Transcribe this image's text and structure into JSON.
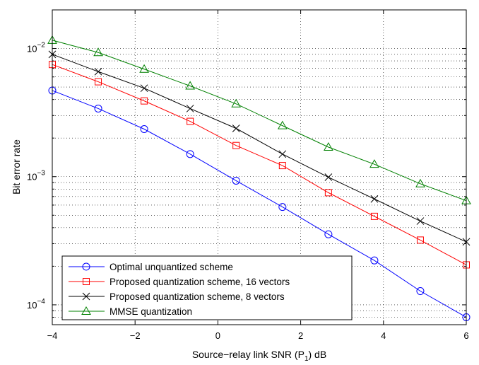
{
  "chart_data": {
    "type": "line",
    "xscale": "linear",
    "yscale": "log",
    "xlim": [
      -4,
      6
    ],
    "ylim": [
      7e-05,
      0.02
    ],
    "xlabel": "Source−relay link SNR (P",
    "xlabel_sub": "1",
    "xlabel_suffix": ") dB",
    "ylabel": "Bit error rate",
    "grid": true,
    "legend_position": "lower-left",
    "x_ticks": [
      -4,
      -2,
      0,
      2,
      4,
      6
    ],
    "x_tick_labels": [
      "−4",
      "−2",
      "0",
      "2",
      "4",
      "6"
    ],
    "y_ticks": [
      0.0001,
      0.001,
      0.01
    ],
    "y_tick_labels": [
      {
        "base": "10",
        "exp": "−4"
      },
      {
        "base": "10",
        "exp": "−3"
      },
      {
        "base": "10",
        "exp": "−2"
      }
    ],
    "x": [
      -4,
      -2.89,
      -1.78,
      -0.67,
      0.44,
      1.56,
      2.67,
      3.78,
      4.89,
      6
    ],
    "series": [
      {
        "name": "Optimal unquantized scheme",
        "color": "#0000ff",
        "marker": "circle",
        "values": [
          0.0047,
          0.0034,
          0.00235,
          0.0015,
          0.00093,
          0.00058,
          0.000355,
          0.000222,
          0.000128,
          8e-05
        ]
      },
      {
        "name": "Proposed quantization scheme, 16 vectors",
        "color": "#ff0000",
        "marker": "square",
        "values": [
          0.0075,
          0.0055,
          0.0039,
          0.0027,
          0.00175,
          0.00122,
          0.00075,
          0.00049,
          0.00032,
          0.000205
        ]
      },
      {
        "name": "Proposed quantization scheme,  8 vectors",
        "color": "#000000",
        "marker": "x",
        "values": [
          0.009,
          0.0066,
          0.0049,
          0.0034,
          0.00238,
          0.0015,
          0.00099,
          0.00067,
          0.00045,
          0.00031
        ]
      },
      {
        "name": "MMSE quantization",
        "color": "#008000",
        "marker": "triangle",
        "values": [
          0.0116,
          0.0093,
          0.0069,
          0.0051,
          0.0037,
          0.0025,
          0.0017,
          0.00125,
          0.00088,
          0.00065
        ]
      }
    ]
  }
}
